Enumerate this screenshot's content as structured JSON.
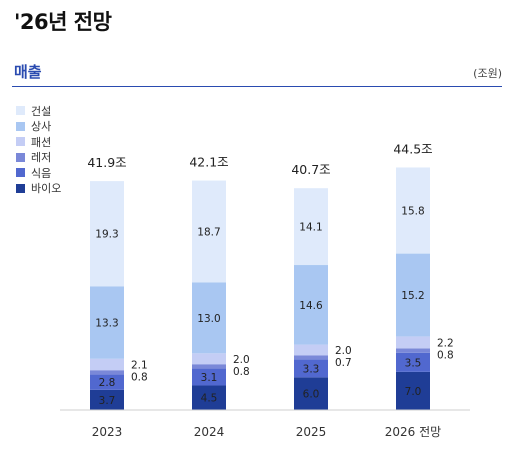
{
  "header": {
    "title": "'26년 전망"
  },
  "section": {
    "title": "매출",
    "unit": "(조원)"
  },
  "chart_data": {
    "type": "bar",
    "stacked": true,
    "categories": [
      "2023",
      "2024",
      "2025",
      "2026 전망"
    ],
    "totals": [
      "41.9조",
      "42.1조",
      "40.7조",
      "44.5조"
    ],
    "series": [
      {
        "name": "바이오",
        "color": "#1f3d96",
        "values": [
          3.7,
          4.5,
          6.0,
          7.0
        ],
        "labels": [
          "3.7",
          "4.5",
          "6.0",
          "7.0"
        ]
      },
      {
        "name": "식음",
        "color": "#5168cf",
        "values": [
          2.8,
          3.1,
          3.3,
          3.5
        ],
        "labels": [
          "2.8",
          "3.1",
          "3.3",
          "3.5"
        ]
      },
      {
        "name": "레저",
        "color": "#7a88d8",
        "values": [
          0.8,
          0.8,
          0.7,
          0.8
        ],
        "labels": [
          "0.8",
          "0.8",
          "0.7",
          "0.8"
        ]
      },
      {
        "name": "패션",
        "color": "#c4cdf5",
        "values": [
          2.1,
          2.0,
          2.0,
          2.2
        ],
        "labels": [
          "2.1",
          "2.0",
          "2.0",
          "2.2"
        ]
      },
      {
        "name": "상사",
        "color": "#a9c7f2",
        "values": [
          13.3,
          13.0,
          14.6,
          15.2
        ],
        "labels": [
          "13.3",
          "13.0",
          "14.6",
          "15.2"
        ]
      },
      {
        "name": "건설",
        "color": "#dfeafb",
        "values": [
          19.3,
          18.7,
          14.1,
          15.8
        ],
        "labels": [
          "19.3",
          "18.7",
          "14.1",
          "15.8"
        ]
      }
    ],
    "legend_order": [
      "건설",
      "상사",
      "패션",
      "레저",
      "식음",
      "바이오"
    ],
    "grid": false,
    "legend_position": "top-left"
  }
}
